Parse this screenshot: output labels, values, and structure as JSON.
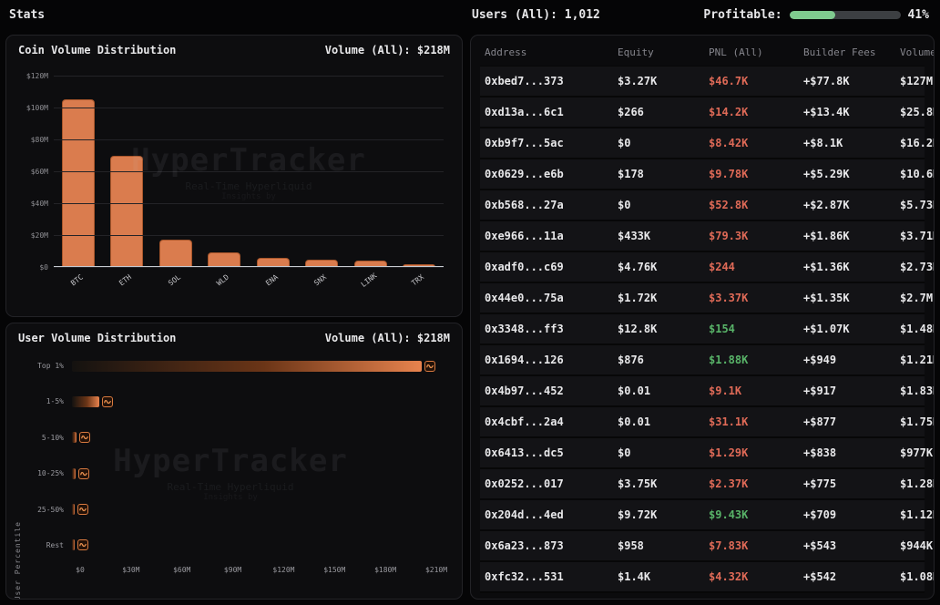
{
  "topbar": {
    "title": "Stats",
    "users_label": "Users (All): 1,012",
    "profitable_label": "Profitable:",
    "profitable_value": "41%",
    "profitable_pct": 41
  },
  "watermark": {
    "title": "HyperTracker",
    "subtitle": "Real-Time Hyperliquid",
    "byline": "Insights by"
  },
  "coin_panel": {
    "title": "Coin Volume Distribution",
    "volume_label": "Volume (All): $218M"
  },
  "user_panel": {
    "title": "User Volume Distribution",
    "volume_label": "Volume (All): $218M",
    "axis_title": "User Percentile"
  },
  "chart_data": [
    {
      "type": "bar",
      "title": "Coin Volume Distribution",
      "categories": [
        "BTC",
        "ETH",
        "SOL",
        "WLD",
        "ENA",
        "SNX",
        "LINK",
        "TRX"
      ],
      "values": [
        105,
        70,
        17,
        9,
        5.5,
        4.8,
        3.8,
        2
      ],
      "unit": "$M",
      "ylabel": "",
      "ylim": [
        0,
        120
      ],
      "yticks": [
        "$120M",
        "$100M",
        "$80M",
        "$60M",
        "$40M",
        "$20M",
        "$0"
      ],
      "grid": true,
      "bar_color": "#da7c4e"
    },
    {
      "type": "bar",
      "orientation": "horizontal",
      "title": "User Volume Distribution",
      "categories": [
        "Top 1%",
        "1-5%",
        "5-10%",
        "10-25%",
        "25-50%",
        "Rest"
      ],
      "values": [
        195,
        15,
        2.5,
        2,
        1.5,
        0.8
      ],
      "unit": "$M",
      "ylabel": "User Percentile",
      "xlim": [
        0,
        210
      ],
      "xticks": [
        "$0",
        "$30M",
        "$60M",
        "$90M",
        "$120M",
        "$150M",
        "$180M",
        "$210M"
      ],
      "grid": false,
      "bar_color": "#e8834e"
    }
  ],
  "table": {
    "headers": [
      "Address",
      "Equity",
      "PNL (All)",
      "Builder Fees",
      "Volume"
    ],
    "rows": [
      {
        "address": "0xbed7...373",
        "equity": "$3.27K",
        "pnl": "$46.7K",
        "pnl_positive": false,
        "builder_fees": "+$77.8K",
        "volume": "$127M"
      },
      {
        "address": "0xd13a...6c1",
        "equity": "$266",
        "pnl": "$14.2K",
        "pnl_positive": false,
        "builder_fees": "+$13.4K",
        "volume": "$25.8M"
      },
      {
        "address": "0xb9f7...5ac",
        "equity": "$0",
        "pnl": "$8.42K",
        "pnl_positive": false,
        "builder_fees": "+$8.1K",
        "volume": "$16.2M"
      },
      {
        "address": "0x0629...e6b",
        "equity": "$178",
        "pnl": "$9.78K",
        "pnl_positive": false,
        "builder_fees": "+$5.29K",
        "volume": "$10.6M"
      },
      {
        "address": "0xb568...27a",
        "equity": "$0",
        "pnl": "$52.8K",
        "pnl_positive": false,
        "builder_fees": "+$2.87K",
        "volume": "$5.73M"
      },
      {
        "address": "0xe966...11a",
        "equity": "$433K",
        "pnl": "$79.3K",
        "pnl_positive": false,
        "builder_fees": "+$1.86K",
        "volume": "$3.71M"
      },
      {
        "address": "0xadf0...c69",
        "equity": "$4.76K",
        "pnl": "$244",
        "pnl_positive": false,
        "builder_fees": "+$1.36K",
        "volume": "$2.73M"
      },
      {
        "address": "0x44e0...75a",
        "equity": "$1.72K",
        "pnl": "$3.37K",
        "pnl_positive": false,
        "builder_fees": "+$1.35K",
        "volume": "$2.7M"
      },
      {
        "address": "0x3348...ff3",
        "equity": "$12.8K",
        "pnl": "$154",
        "pnl_positive": true,
        "builder_fees": "+$1.07K",
        "volume": "$1.48M"
      },
      {
        "address": "0x1694...126",
        "equity": "$876",
        "pnl": "$1.88K",
        "pnl_positive": true,
        "builder_fees": "+$949",
        "volume": "$1.21M"
      },
      {
        "address": "0x4b97...452",
        "equity": "$0.01",
        "pnl": "$9.1K",
        "pnl_positive": false,
        "builder_fees": "+$917",
        "volume": "$1.83M"
      },
      {
        "address": "0x4cbf...2a4",
        "equity": "$0.01",
        "pnl": "$31.1K",
        "pnl_positive": false,
        "builder_fees": "+$877",
        "volume": "$1.75M"
      },
      {
        "address": "0x6413...dc5",
        "equity": "$0",
        "pnl": "$1.29K",
        "pnl_positive": false,
        "builder_fees": "+$838",
        "volume": "$977K"
      },
      {
        "address": "0x0252...017",
        "equity": "$3.75K",
        "pnl": "$2.37K",
        "pnl_positive": false,
        "builder_fees": "+$775",
        "volume": "$1.28M"
      },
      {
        "address": "0x204d...4ed",
        "equity": "$9.72K",
        "pnl": "$9.43K",
        "pnl_positive": true,
        "builder_fees": "+$709",
        "volume": "$1.12M"
      },
      {
        "address": "0x6a23...873",
        "equity": "$958",
        "pnl": "$7.83K",
        "pnl_positive": false,
        "builder_fees": "+$543",
        "volume": "$944K"
      },
      {
        "address": "0xfc32...531",
        "equity": "$1.4K",
        "pnl": "$4.32K",
        "pnl_positive": false,
        "builder_fees": "+$542",
        "volume": "$1.08M"
      }
    ]
  },
  "colors": {
    "accent_orange": "#da7c4e",
    "pnl_negative": "#df6a57",
    "pnl_positive": "#58b368",
    "progress_green": "#7fcb8f",
    "background": "#050506",
    "panel": "#0d0d0f"
  }
}
